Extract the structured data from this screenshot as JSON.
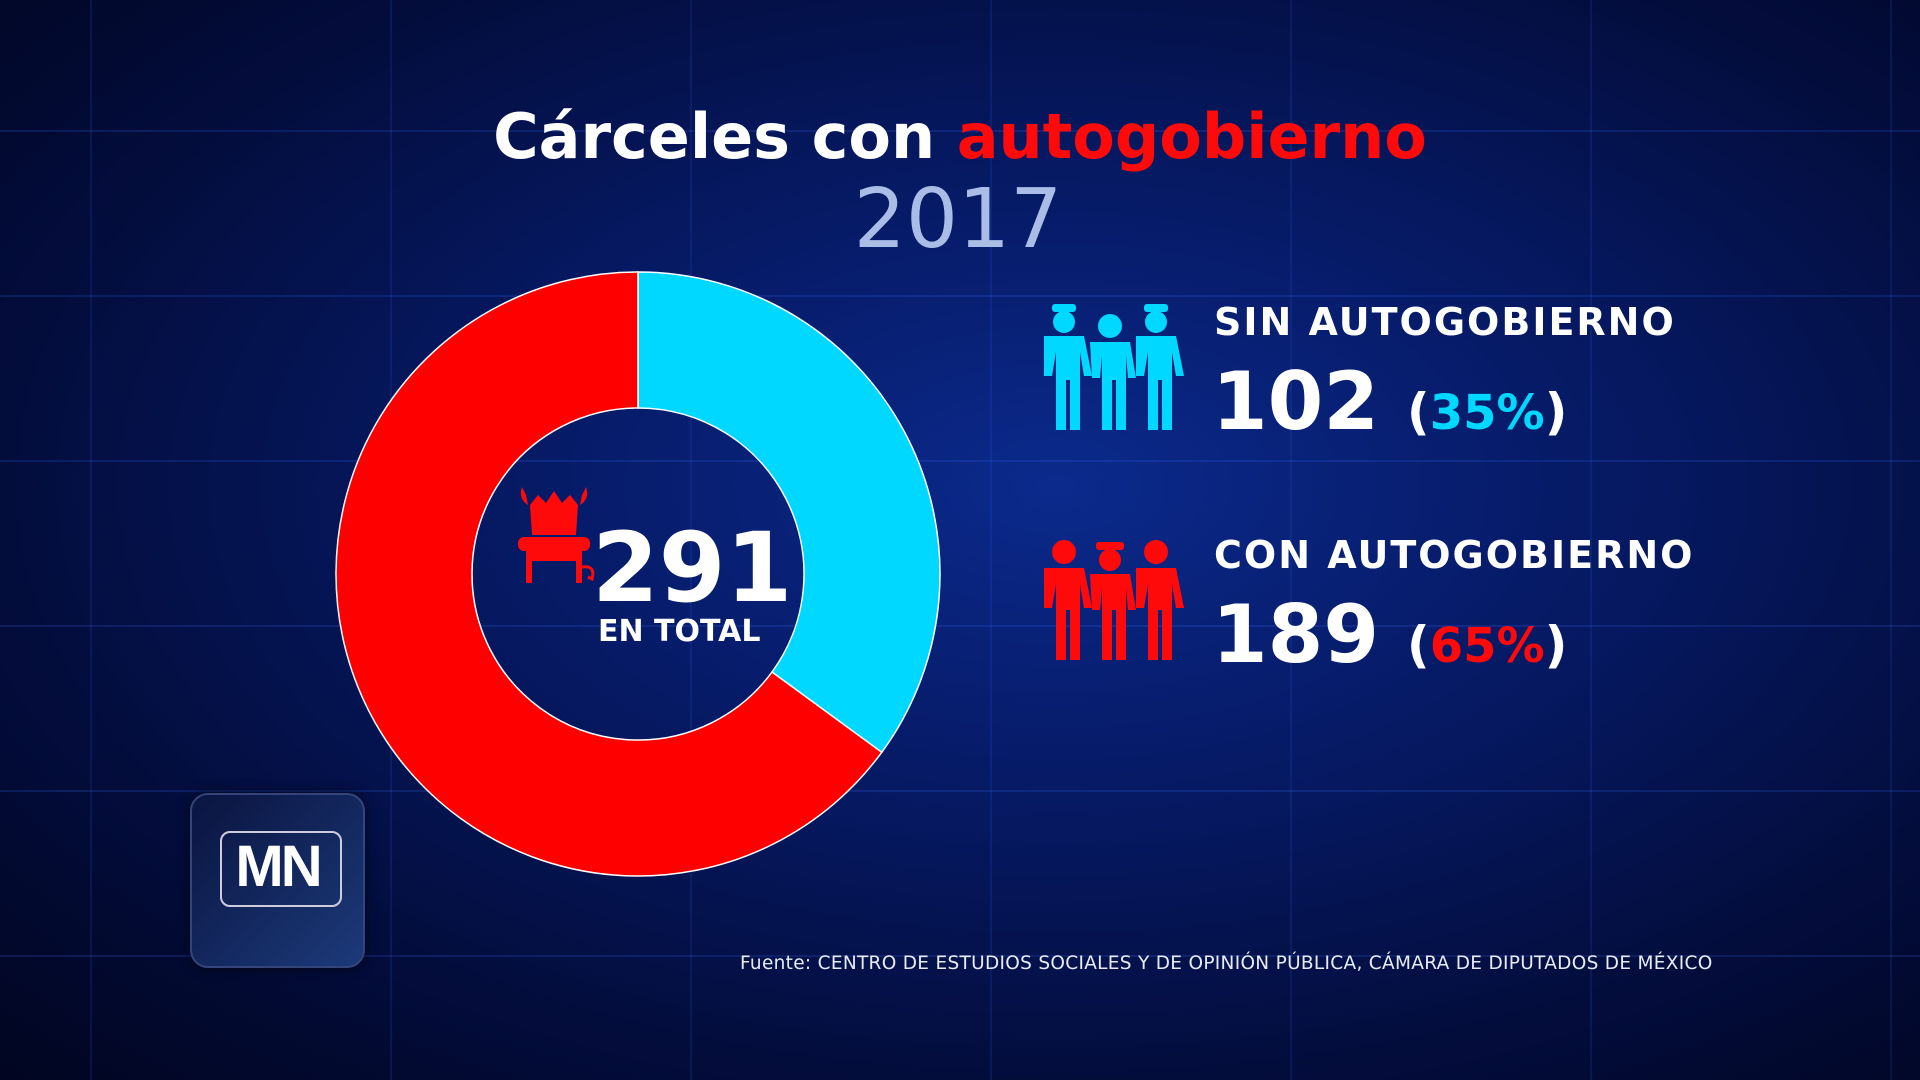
{
  "title": {
    "part1": "Cárceles con ",
    "part2": "autogobierno",
    "year": "2017"
  },
  "center": {
    "total": "291",
    "label": "EN TOTAL"
  },
  "colors": {
    "sin": "#00d8ff",
    "con": "#ff0000",
    "year": "#a9bde6"
  },
  "legend": [
    {
      "label": "SIN AUTOGOBIERNO",
      "value": "102",
      "pct": "35%",
      "icon": "people-with-guards-icon"
    },
    {
      "label": "CON AUTOGOBIERNO",
      "value": "189",
      "pct": "65%",
      "icon": "people-group-icon"
    }
  ],
  "source": "Fuente: CENTRO DE ESTUDIOS SOCIALES Y DE OPINIÓN PÚBLICA, CÁMARA DE DIPUTADOS DE MÉXICO",
  "logo": "MN",
  "chart_data": {
    "type": "pie",
    "title": "Cárceles con autogobierno 2017",
    "categories": [
      "Sin autogobierno",
      "Con autogobierno"
    ],
    "values": [
      102,
      189
    ],
    "percent": [
      35,
      65
    ],
    "total": 291,
    "donut": true
  }
}
